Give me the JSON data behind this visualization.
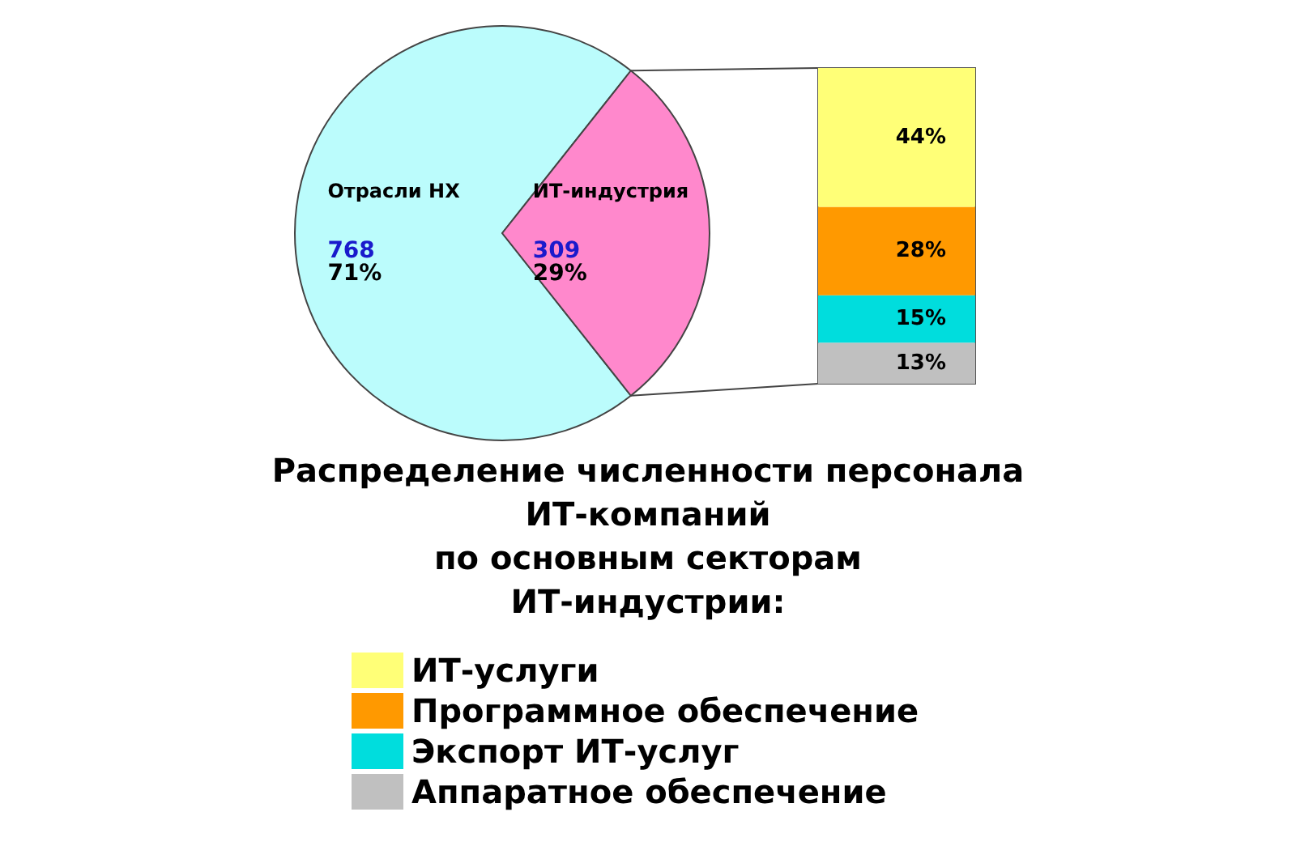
{
  "chart_data": [
    {
      "type": "pie",
      "categories": [
        "Отрасли НХ",
        "ИТ-индустрия"
      ],
      "values": [
        768,
        309
      ],
      "colors": [
        "#bbfcfc",
        "#ff88cc"
      ],
      "value_labels": [
        "768\n71%",
        "309\n29%"
      ],
      "legend": false
    },
    {
      "type": "bar",
      "stacked": true,
      "categories": [
        null
      ],
      "title": "Распределение численности персонала\nИТ-компаний\nпо основным секторам\nИТ-индустрии:",
      "legend": "bottom",
      "series": [
        {
          "name": "Аппаратное обеспечение",
          "color": "#c0c0c0",
          "values": [
            0.13
          ],
          "value_labels": [
            "13%"
          ]
        },
        {
          "name": "Экспорт ИТ-услуг",
          "color": "#00dddd",
          "values": [
            0.15
          ],
          "value_labels": [
            "15%"
          ]
        },
        {
          "name": "Программное обеспечение",
          "color": "#ff9900",
          "values": [
            0.28
          ],
          "value_labels": [
            "28%"
          ]
        },
        {
          "name": "ИТ-услуги",
          "color": "#ffff77",
          "values": [
            0.44
          ],
          "value_labels": [
            "44%"
          ]
        }
      ]
    }
  ]
}
